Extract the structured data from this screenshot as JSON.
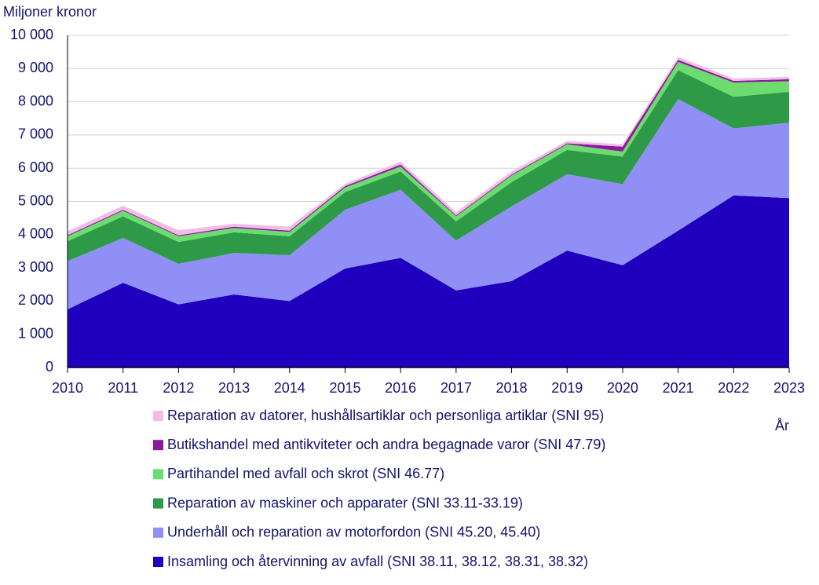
{
  "chart_data": {
    "type": "stacked-area",
    "y_label": "Miljoner kronor",
    "x_label": "År",
    "x": [
      2010,
      2011,
      2012,
      2013,
      2014,
      2015,
      2016,
      2017,
      2018,
      2019,
      2020,
      2021,
      2022,
      2023
    ],
    "xlim": [
      2010,
      2023
    ],
    "xticks": [
      2010,
      2011,
      2012,
      2013,
      2014,
      2015,
      2016,
      2017,
      2018,
      2019,
      2020,
      2021,
      2022,
      2023
    ],
    "ylim": [
      0,
      10000
    ],
    "yticks": [
      0,
      {
        "value": 1000,
        "label": "1 000"
      },
      {
        "value": 2000,
        "label": "2 000"
      },
      {
        "value": 3000,
        "label": "3 000"
      },
      {
        "value": 4000,
        "label": "4 000"
      },
      {
        "value": 5000,
        "label": "5 000"
      },
      {
        "value": 6000,
        "label": "6 000"
      },
      {
        "value": 7000,
        "label": "7 000"
      },
      {
        "value": 8000,
        "label": "8 000"
      },
      {
        "value": 9000,
        "label": "9 000"
      },
      {
        "value": 10000,
        "label": "10 000"
      }
    ],
    "grid": true,
    "series": [
      {
        "name": "Insamling och återvinning av avfall (SNI 38.11, 38.12, 38.31, 38.32)",
        "color": "#1e00be",
        "values": [
          1750,
          2550,
          1900,
          2200,
          2000,
          2980,
          3300,
          2320,
          2600,
          3520,
          3080,
          4120,
          5180,
          5100
        ]
      },
      {
        "name": "Underhåll och reparation av motorfordon (SNI 45.20, 45.40)",
        "color": "#8f8ff5",
        "values": [
          1450,
          1350,
          1220,
          1250,
          1380,
          1770,
          2050,
          1500,
          2250,
          2300,
          2440,
          3960,
          2020,
          2270
        ]
      },
      {
        "name": "Reparation av maskiner och apparater (SNI 33.11-33.19)",
        "color": "#2e9a48",
        "values": [
          600,
          650,
          660,
          620,
          570,
          530,
          550,
          580,
          730,
          730,
          830,
          870,
          950,
          930
        ]
      },
      {
        "name": "Partihandel med avfall och skrot (SNI 46.77)",
        "color": "#6ddc6e",
        "values": [
          150,
          170,
          170,
          130,
          130,
          140,
          150,
          150,
          200,
          170,
          150,
          250,
          430,
          320
        ]
      },
      {
        "name": "Butikshandel med antikviteter och andra begagnade varor (SNI 47.79)",
        "color": "#8c1a9c",
        "values": [
          30,
          30,
          30,
          40,
          40,
          40,
          60,
          30,
          30,
          30,
          150,
          60,
          50,
          60
        ]
      },
      {
        "name": "Reparation av datorer, hushållsartiklar och personliga artiklar (SNI 95)",
        "color": "#f2bce8",
        "values": [
          120,
          120,
          150,
          90,
          120,
          70,
          90,
          100,
          90,
          70,
          70,
          90,
          70,
          70
        ]
      }
    ]
  }
}
